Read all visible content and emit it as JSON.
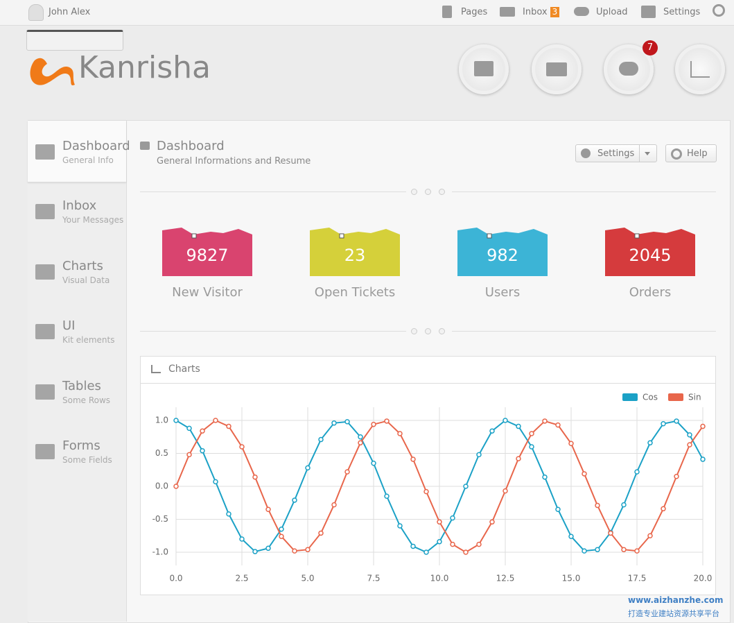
{
  "topbar": {
    "user": "John Alex",
    "links": [
      "Pages",
      "Inbox",
      "Upload",
      "Settings"
    ],
    "inbox_badge": 3
  },
  "logo": {
    "text": "Kanrisha"
  },
  "notifications_badge": 7,
  "sidebar": [
    {
      "title": "Dashboard",
      "subtitle": "General Info"
    },
    {
      "title": "Inbox",
      "subtitle": "Your Messages"
    },
    {
      "title": "Charts",
      "subtitle": "Visual Data"
    },
    {
      "title": "UI",
      "subtitle": "Kit elements"
    },
    {
      "title": "Tables",
      "subtitle": "Some Rows"
    },
    {
      "title": "Forms",
      "subtitle": "Some Fields"
    }
  ],
  "header": {
    "title": "Dashboard",
    "subtitle": "General Informations and Resume",
    "settings_button": "Settings",
    "help_button": "Help"
  },
  "stats": [
    {
      "value": 9827,
      "label": "New Visitor",
      "color": "#d9446f"
    },
    {
      "value": 23,
      "label": "Open Tickets",
      "color": "#d5d03a"
    },
    {
      "value": 982,
      "label": "Users",
      "color": "#3cb4d6"
    },
    {
      "value": 2045,
      "label": "Orders",
      "color": "#d53b3d"
    }
  ],
  "watermark": {
    "url": "www.aizhanzhe.com",
    "tagline": "打造专业建站资源共享平台"
  },
  "chart_data": {
    "type": "line",
    "title": "Charts",
    "x": [
      0,
      0.5,
      1,
      1.5,
      2,
      2.5,
      3,
      3.5,
      4,
      4.5,
      5,
      5.5,
      6,
      6.5,
      7,
      7.5,
      8,
      8.5,
      9,
      9.5,
      10,
      10.5,
      11,
      11.5,
      12,
      12.5,
      13,
      13.5,
      14,
      14.5,
      15,
      15.5,
      16,
      16.5,
      17,
      17.5,
      18,
      18.5,
      19,
      19.5,
      20
    ],
    "series": [
      {
        "name": "Cos",
        "color": "#1ba1c6",
        "values": [
          1.0,
          0.88,
          0.54,
          0.07,
          -0.42,
          -0.8,
          -0.99,
          -0.94,
          -0.65,
          -0.21,
          0.28,
          0.71,
          0.96,
          0.98,
          0.75,
          0.35,
          -0.15,
          -0.6,
          -0.91,
          -1.0,
          -0.84,
          -0.48,
          0.0,
          0.48,
          0.84,
          1.0,
          0.91,
          0.6,
          0.14,
          -0.35,
          -0.76,
          -0.98,
          -0.96,
          -0.7,
          -0.28,
          0.22,
          0.66,
          0.95,
          0.99,
          0.78,
          0.41
        ]
      },
      {
        "name": "Sin",
        "color": "#e8664b",
        "values": [
          0.0,
          0.48,
          0.84,
          1.0,
          0.91,
          0.6,
          0.14,
          -0.35,
          -0.76,
          -0.98,
          -0.96,
          -0.71,
          -0.28,
          0.22,
          0.66,
          0.94,
          0.99,
          0.8,
          0.41,
          -0.08,
          -0.54,
          -0.88,
          -1.0,
          -0.88,
          -0.54,
          -0.07,
          0.42,
          0.8,
          0.99,
          0.93,
          0.65,
          0.19,
          -0.29,
          -0.71,
          -0.96,
          -0.98,
          -0.75,
          -0.34,
          0.15,
          0.63,
          0.91
        ]
      }
    ],
    "xlim": [
      0,
      20
    ],
    "ylim": [
      -1.2,
      1.2
    ],
    "xticks": [
      {
        "value": 0,
        "label": "0.0"
      },
      2.5,
      {
        "value": 5,
        "label": "5.0"
      },
      7.5,
      {
        "value": 10,
        "label": "10.0"
      },
      12.5,
      {
        "value": 15,
        "label": "15.0"
      },
      17.5,
      {
        "value": 20,
        "label": "20.0"
      }
    ],
    "yticks": [
      {
        "value": 1,
        "label": "1.0"
      },
      0.5,
      {
        "value": 0,
        "label": "0.0"
      },
      -0.5,
      {
        "value": -1,
        "label": "-1.0"
      }
    ],
    "grid": true,
    "legend": "top-right"
  }
}
